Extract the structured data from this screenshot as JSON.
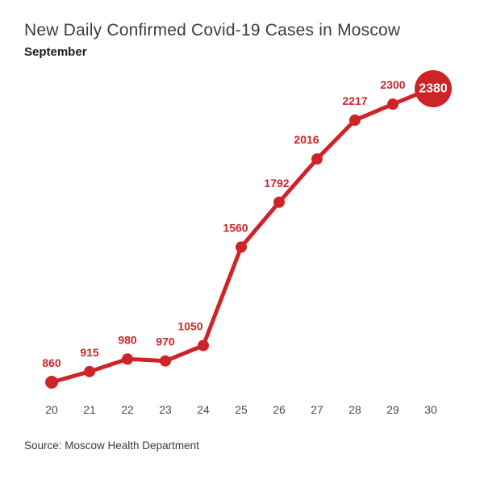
{
  "header": {
    "title": "New Daily Confirmed Covid-19 Cases in Moscow",
    "subtitle": "September"
  },
  "footer": {
    "source": "Source: Moscow Health Department"
  },
  "colors": {
    "accent_red": "#ce2428",
    "point_label_red": "#ce2428",
    "label_on_accent": "#ffffff",
    "title_gray": "#3d3d3d",
    "axis_tick_gray": "#4a4a4a"
  },
  "chart_data": {
    "type": "line",
    "title": "New Daily Confirmed Covid-19 Cases in Moscow",
    "subtitle": "September",
    "x": [
      20,
      21,
      22,
      23,
      24,
      25,
      26,
      27,
      28,
      29,
      30
    ],
    "values": [
      860,
      915,
      980,
      970,
      1050,
      1560,
      1792,
      2016,
      2217,
      2300,
      2380
    ],
    "point_labels": [
      "860",
      "915",
      "980",
      "970",
      "1050",
      "1560",
      "1792",
      "2016",
      "2217",
      "2300",
      "2380"
    ],
    "xlabel": "",
    "ylabel": "",
    "ylim": [
      860,
      2380
    ],
    "grid": false,
    "legend": "none",
    "source": "Source: Moscow Health Department",
    "layout_hints": {
      "label_dx": [
        0,
        0,
        0,
        0,
        -16,
        -7,
        -3,
        -13,
        0,
        0,
        0
      ],
      "emphasized_last_point": true,
      "first_point_slightly_larger": true
    }
  }
}
